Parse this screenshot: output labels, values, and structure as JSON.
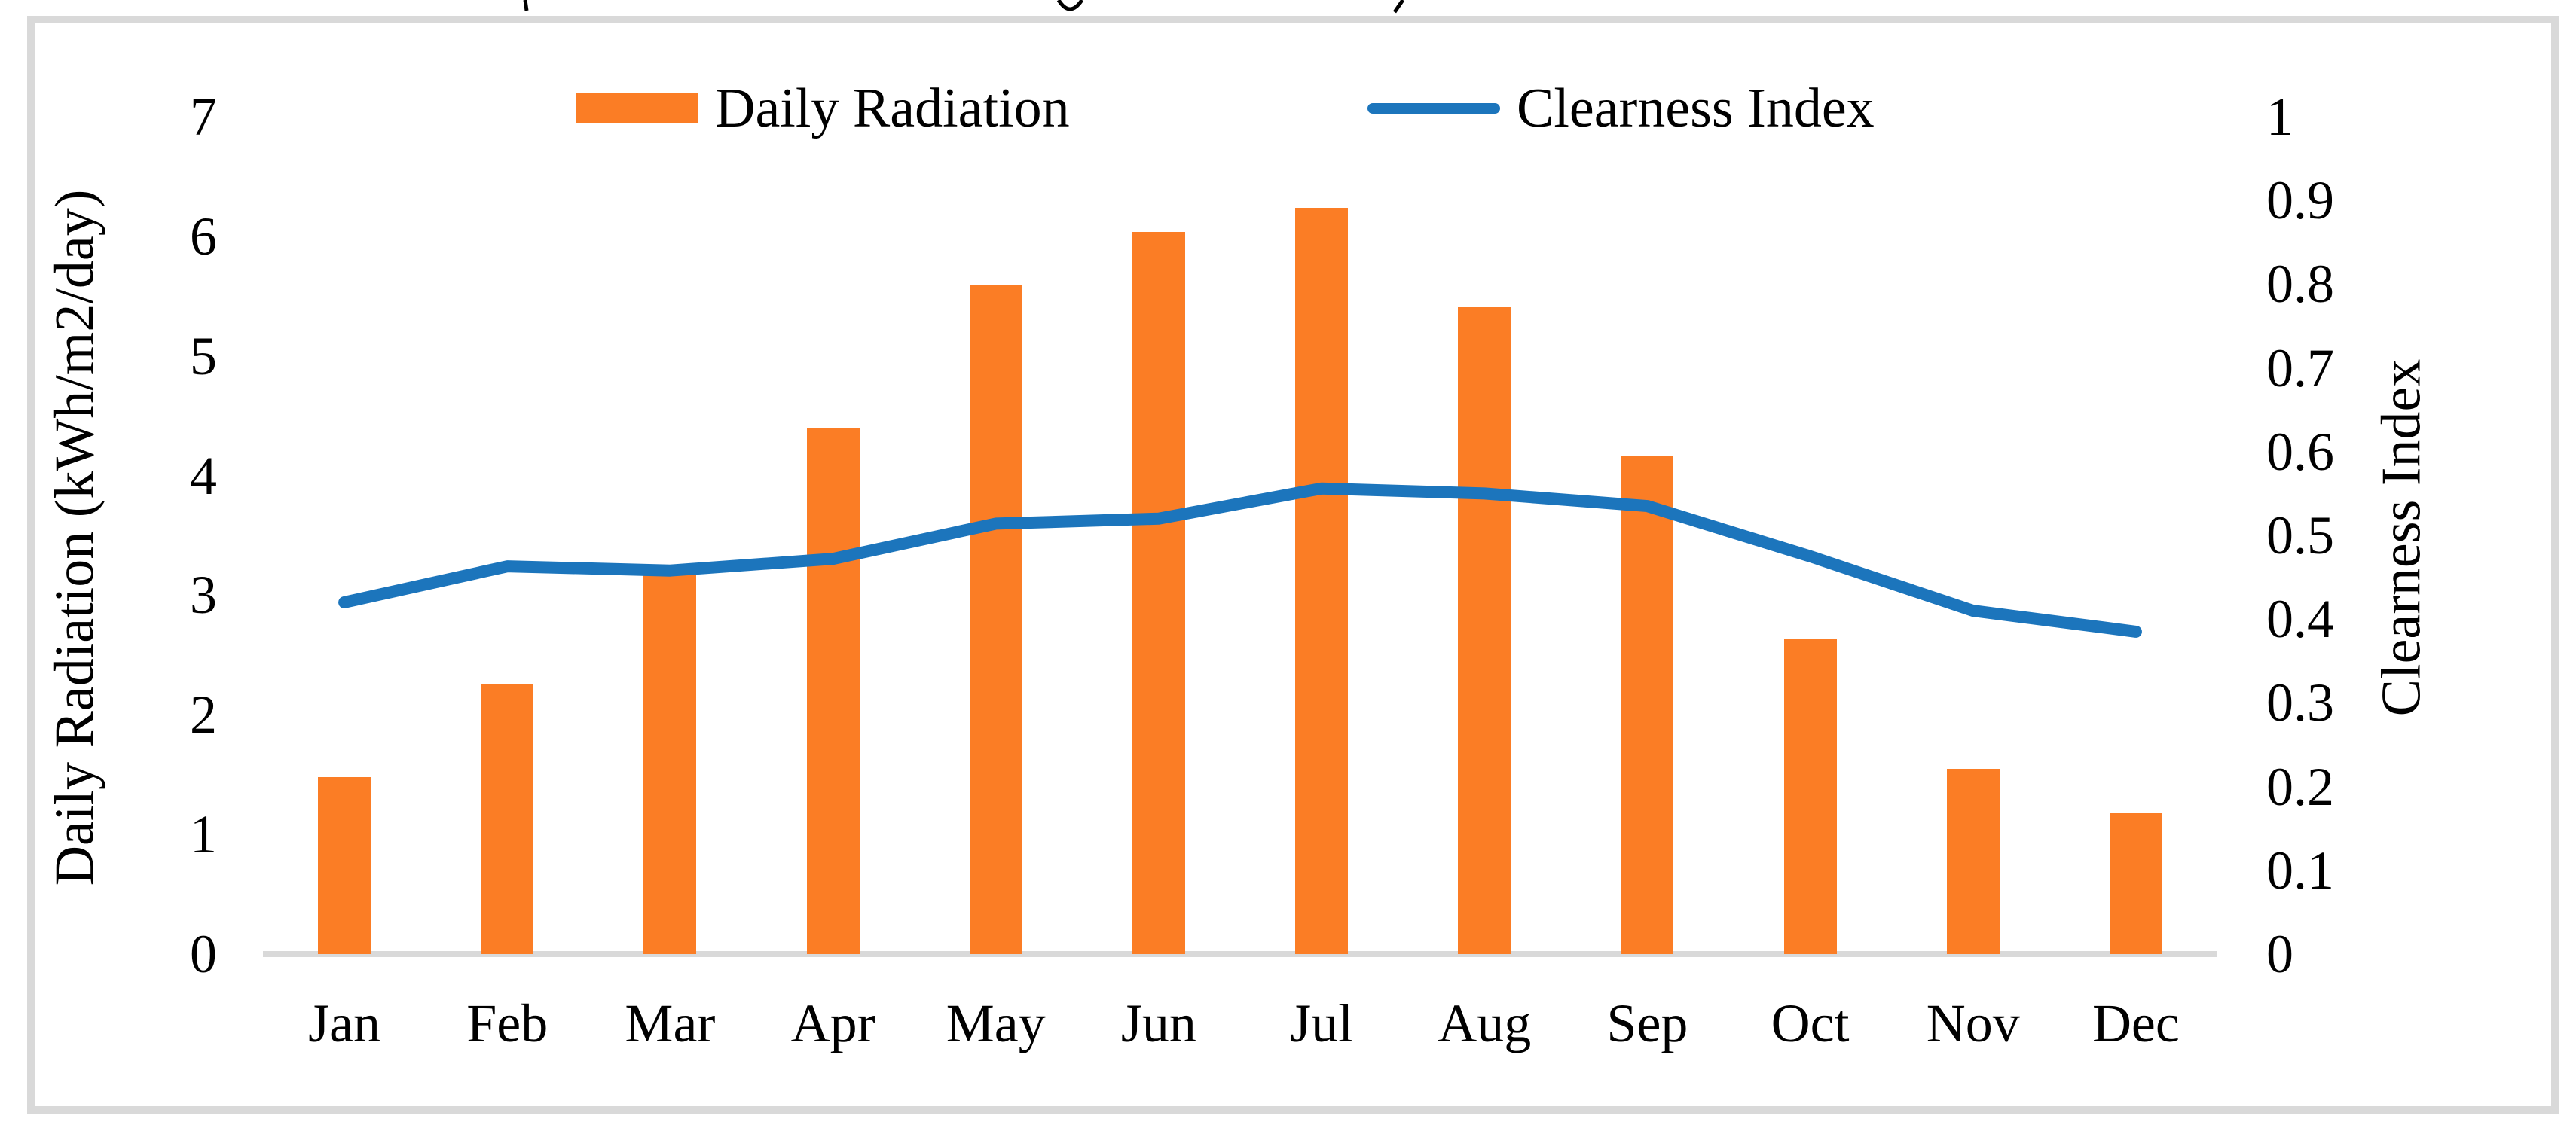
{
  "figure": {
    "background": "#ffffff",
    "border_color": "#d9d9d9",
    "axis_line_color": "#d9d9d9",
    "text_color": "#000000"
  },
  "legend": {
    "position": "top",
    "items": [
      {
        "label": "Daily Radiation",
        "marker": "bar-swatch",
        "color": "#fb7d25"
      },
      {
        "label": "Clearness Index",
        "marker": "line-swatch",
        "color": "#1c75bc"
      }
    ]
  },
  "chart_data": {
    "type": "bar",
    "overlay": "line",
    "description": "Combo chart: monthly daily solar radiation (bars, left axis) with clearness index (line, right axis)",
    "categories": [
      "Jan",
      "Feb",
      "Mar",
      "Apr",
      "May",
      "Jun",
      "Jul",
      "Aug",
      "Sep",
      "Oct",
      "Nov",
      "Dec"
    ],
    "series": [
      {
        "name": "Daily Radiation",
        "type": "bar",
        "axis": "left",
        "color": "#fb7d25",
        "values": [
          1.48,
          2.26,
          3.2,
          4.4,
          5.59,
          6.04,
          6.24,
          5.41,
          4.16,
          2.64,
          1.55,
          1.18
        ]
      },
      {
        "name": "Clearness Index",
        "type": "line",
        "axis": "right",
        "color": "#1c75bc",
        "values": [
          0.42,
          0.463,
          0.458,
          0.472,
          0.514,
          0.52,
          0.556,
          0.55,
          0.535,
          0.475,
          0.41,
          0.385
        ]
      }
    ],
    "left_axis": {
      "title": "Daily Radiation (kWh/m2/day)",
      "min": 0,
      "max": 7,
      "step": 1,
      "tick_labels": [
        "7",
        "6",
        "5",
        "4",
        "3",
        "2",
        "1",
        "0"
      ]
    },
    "right_axis": {
      "title": "Clearness Index",
      "min": 0,
      "max": 1,
      "step": 0.1,
      "tick_labels": [
        "1",
        "0.9",
        "0.8",
        "0.7",
        "0.6",
        "0.5",
        "0.4",
        "0.3",
        "0.2",
        "0.1",
        "0"
      ]
    },
    "x_axis": {
      "tick_labels": [
        "Jan",
        "Feb",
        "Mar",
        "Apr",
        "May",
        "Jun",
        "Jul",
        "Aug",
        "Sep",
        "Oct",
        "Nov",
        "Dec"
      ]
    },
    "grid": false,
    "legend_position": "top"
  }
}
